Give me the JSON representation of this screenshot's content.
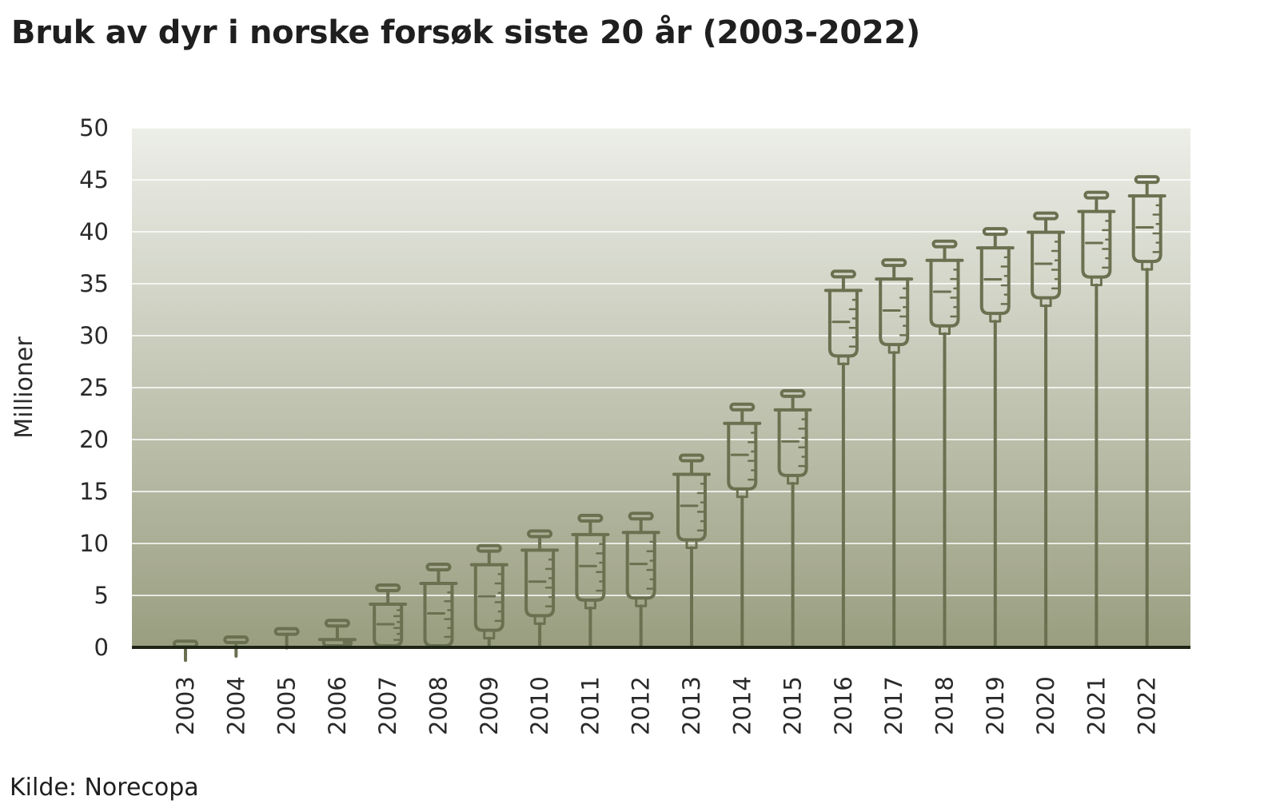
{
  "title": "Bruk av dyr i norske forsøk siste 20 år (2003-2022)",
  "source": "Kilde: Norecopa",
  "chart_data": {
    "type": "bar",
    "title": "Bruk av dyr i norske forsøk siste 20 år (2003-2022)",
    "xlabel": "",
    "ylabel": "Millioner",
    "ylim": [
      0,
      50
    ],
    "yticks": [
      "0",
      "5",
      "10",
      "15",
      "20",
      "25",
      "30",
      "35",
      "40",
      "45",
      "50"
    ],
    "grid": true,
    "marker": "syringe",
    "categories": [
      "2003",
      "2004",
      "2005",
      "2006",
      "2007",
      "2008",
      "2009",
      "2010",
      "2011",
      "2012",
      "2013",
      "2014",
      "2015",
      "2016",
      "2017",
      "2018",
      "2019",
      "2020",
      "2021",
      "2022"
    ],
    "values": [
      0.6,
      1.0,
      1.8,
      2.6,
      6.0,
      8.0,
      9.8,
      11.2,
      12.7,
      12.9,
      18.5,
      23.4,
      24.7,
      36.2,
      37.3,
      39.1,
      40.3,
      41.8,
      43.8,
      45.3
    ],
    "colors": {
      "syringe": "#6b7050",
      "gradient_top": "#eceee8",
      "gradient_bottom": "#9a9e80",
      "grid": "#ffffff",
      "baseline": "#1e2415"
    }
  }
}
